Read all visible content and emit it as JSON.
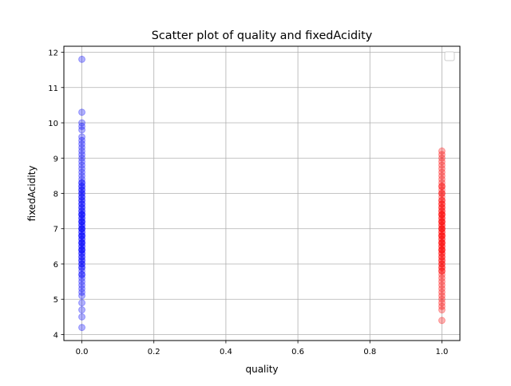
{
  "chart_data": {
    "type": "scatter",
    "title": "Scatter plot of quality and fixedAcidity",
    "xlabel": "quality",
    "ylabel": "fixedAcidity",
    "xlim": [
      -0.05,
      1.05
    ],
    "ylim": [
      3.83,
      12.17
    ],
    "xticks": [
      "0.0",
      "0.2",
      "0.4",
      "0.6",
      "0.8",
      "1.0"
    ],
    "yticks": [
      "4",
      "5",
      "6",
      "7",
      "8",
      "9",
      "10",
      "11",
      "12"
    ],
    "grid": true,
    "legend": {
      "placement": "top-right",
      "entries": []
    },
    "series": [
      {
        "color": "#0000ff",
        "alpha": 0.3,
        "x": [
          0,
          0,
          0,
          0,
          0,
          0,
          0,
          0,
          0,
          0,
          0,
          0,
          0,
          0,
          0,
          0,
          0,
          0,
          0,
          0,
          0,
          0,
          0,
          0,
          0,
          0,
          0,
          0,
          0,
          0,
          0,
          0,
          0,
          0,
          0,
          0,
          0,
          0,
          0,
          0,
          0,
          0,
          0,
          0,
          0,
          0,
          0,
          0,
          0,
          0,
          0,
          0,
          0,
          0,
          0,
          0,
          0,
          0,
          0,
          0,
          0,
          0,
          0,
          0,
          0,
          0,
          0,
          0,
          0,
          0,
          0,
          0,
          0,
          0,
          0,
          0,
          0,
          0,
          0,
          0,
          0,
          0,
          0,
          0,
          0,
          0,
          0
        ],
        "y": [
          11.8,
          10.3,
          10.0,
          9.9,
          9.8,
          9.6,
          9.5,
          9.4,
          9.3,
          9.2,
          9.1,
          9.0,
          8.9,
          8.8,
          8.7,
          8.6,
          8.5,
          8.4,
          8.3,
          8.2,
          8.1,
          8.0,
          7.9,
          7.8,
          7.7,
          7.6,
          7.5,
          7.4,
          7.3,
          7.2,
          7.1,
          7.0,
          6.9,
          6.8,
          6.7,
          6.6,
          6.5,
          6.4,
          6.3,
          6.2,
          6.1,
          6.0,
          5.9,
          5.8,
          5.7,
          5.6,
          5.5,
          5.4,
          5.3,
          5.2,
          5.1,
          4.9,
          4.7,
          4.5,
          4.2,
          7.8,
          7.6,
          7.4,
          7.2,
          7.0,
          6.8,
          6.6,
          6.4,
          6.2,
          7.1,
          6.9,
          6.7,
          6.5,
          7.3,
          7.5,
          7.7,
          7.9,
          8.1,
          8.3,
          6.3,
          6.1,
          5.9,
          5.7,
          8.0,
          8.2,
          7.0,
          6.8,
          6.6,
          7.2,
          7.4,
          6.4,
          6.0
        ]
      },
      {
        "color": "#ff0000",
        "alpha": 0.3,
        "x": [
          1,
          1,
          1,
          1,
          1,
          1,
          1,
          1,
          1,
          1,
          1,
          1,
          1,
          1,
          1,
          1,
          1,
          1,
          1,
          1,
          1,
          1,
          1,
          1,
          1,
          1,
          1,
          1,
          1,
          1,
          1,
          1,
          1,
          1,
          1,
          1,
          1,
          1,
          1,
          1,
          1,
          1,
          1,
          1,
          1,
          1,
          1,
          1,
          1,
          1,
          1,
          1,
          1,
          1,
          1,
          1,
          1,
          1,
          1,
          1,
          1,
          1,
          1,
          1,
          1,
          1,
          1,
          1,
          1,
          1,
          1,
          1,
          1,
          1,
          1,
          1
        ],
        "y": [
          9.2,
          9.1,
          9.0,
          8.9,
          8.8,
          8.7,
          8.6,
          8.5,
          8.4,
          8.3,
          8.2,
          8.1,
          8.0,
          7.9,
          7.8,
          7.7,
          7.6,
          7.5,
          7.4,
          7.3,
          7.2,
          7.1,
          7.0,
          6.9,
          6.8,
          6.7,
          6.6,
          6.5,
          6.4,
          6.3,
          6.2,
          6.1,
          6.0,
          5.9,
          5.8,
          5.7,
          5.6,
          5.5,
          5.4,
          5.3,
          5.2,
          5.1,
          5.0,
          4.9,
          4.8,
          4.7,
          4.4,
          7.8,
          7.6,
          7.4,
          7.2,
          7.0,
          6.8,
          6.6,
          6.4,
          6.2,
          7.1,
          6.9,
          6.7,
          6.5,
          7.3,
          7.5,
          7.7,
          6.3,
          6.1,
          5.9,
          7.0,
          6.8,
          6.6,
          7.2,
          7.4,
          6.4,
          6.0,
          8.0,
          8.2,
          5.8
        ]
      }
    ]
  }
}
